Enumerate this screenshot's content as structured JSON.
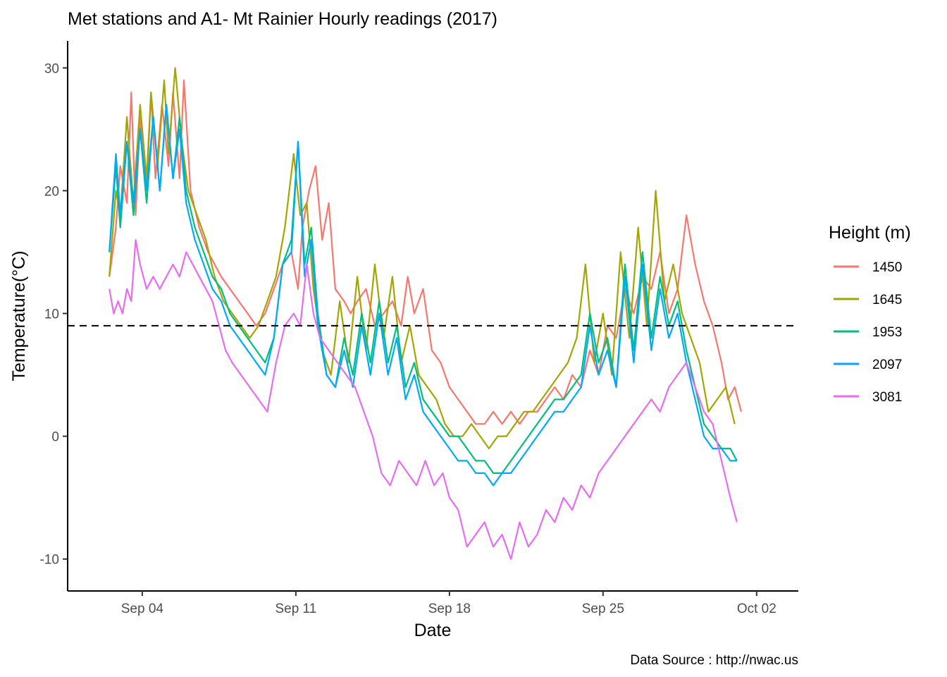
{
  "title": "Met stations and A1-  Mt Rainier Hourly readings (2017)",
  "caption": "Data Source : http://nwac.us",
  "legend": {
    "title": "Height (m)"
  },
  "chart_data": {
    "type": "line",
    "title": "Met stations and A1-  Mt Rainier Hourly readings (2017)",
    "xlabel": "Date",
    "ylabel": "Temperature(°C)",
    "x_ticks": [
      "Sep 04",
      "Sep 11",
      "Sep 18",
      "Sep 25",
      "Oct 02"
    ],
    "x_tick_days": [
      4,
      11,
      18,
      25,
      32
    ],
    "y_ticks": [
      -10,
      0,
      10,
      20,
      30
    ],
    "xlim": [
      0.6,
      33.9
    ],
    "ylim": [
      -12.6,
      32.2
    ],
    "reference_line": {
      "y": 9,
      "style": "dashed"
    },
    "x_units": "day of September 2017",
    "legend_position": "right",
    "grid": false,
    "series": [
      {
        "name": "1450",
        "color": "#F8766D",
        "x": [
          2.5,
          2.8,
          3.0,
          3.3,
          3.5,
          3.7,
          3.9,
          4.2,
          4.4,
          4.6,
          4.9,
          5.2,
          5.4,
          5.7,
          5.9,
          6.2,
          6.6,
          7.0,
          7.3,
          7.6,
          8.0,
          8.4,
          8.8,
          9.2,
          9.6,
          10.0,
          10.4,
          10.8,
          11.1,
          11.3,
          11.6,
          11.9,
          12.2,
          12.5,
          12.8,
          13.2,
          13.5,
          13.8,
          14.2,
          14.6,
          15.0,
          15.4,
          15.8,
          16.1,
          16.4,
          16.8,
          17.2,
          17.6,
          18.0,
          18.4,
          18.8,
          19.2,
          19.6,
          20.0,
          20.4,
          20.8,
          21.2,
          21.6,
          22.0,
          22.4,
          22.8,
          23.2,
          23.6,
          24.0,
          24.4,
          24.8,
          25.2,
          25.6,
          26.0,
          26.4,
          26.8,
          27.2,
          27.6,
          28.0,
          28.4,
          28.8,
          29.2,
          29.6,
          30.0,
          30.4,
          30.7,
          31.0,
          31.3
        ],
        "y": [
          13,
          17,
          22,
          19,
          28,
          18,
          26,
          20,
          28,
          21,
          27,
          22,
          28,
          21,
          29,
          20,
          17,
          15,
          14,
          13,
          12,
          11,
          10,
          9,
          10,
          12,
          14,
          15,
          12,
          17,
          20,
          22,
          16,
          19,
          12,
          11,
          10,
          11,
          12,
          9,
          10,
          11,
          9,
          13,
          10,
          12,
          7,
          6,
          4,
          3,
          2,
          1,
          1,
          2,
          1,
          2,
          1,
          2,
          2,
          3,
          4,
          3,
          5,
          4,
          7,
          5,
          9,
          8,
          12,
          10,
          13,
          12,
          15,
          10,
          12,
          18,
          14,
          11,
          9,
          6,
          3,
          4,
          2
        ]
      },
      {
        "name": "1645",
        "color": "#A3A500",
        "x": [
          2.5,
          2.8,
          3.0,
          3.3,
          3.6,
          3.9,
          4.2,
          4.4,
          4.7,
          5.0,
          5.2,
          5.5,
          5.8,
          6.1,
          6.5,
          6.9,
          7.3,
          7.7,
          8.1,
          8.5,
          8.9,
          9.3,
          9.7,
          10.1,
          10.5,
          10.9,
          11.2,
          11.5,
          11.8,
          12.2,
          12.6,
          13.0,
          13.4,
          13.8,
          14.2,
          14.6,
          15.0,
          15.4,
          15.8,
          16.2,
          16.6,
          17.0,
          17.4,
          17.8,
          18.2,
          18.6,
          19.0,
          19.4,
          19.8,
          20.2,
          20.6,
          21.0,
          21.4,
          21.8,
          22.2,
          22.6,
          23.0,
          23.4,
          23.8,
          24.2,
          24.6,
          25.0,
          25.4,
          25.8,
          26.2,
          26.6,
          27.0,
          27.4,
          27.8,
          28.2,
          28.6,
          29.0,
          29.4,
          29.8,
          30.2,
          30.6,
          31.0
        ],
        "y": [
          13,
          20,
          18,
          26,
          19,
          27,
          21,
          28,
          22,
          29,
          23,
          30,
          24,
          20,
          18,
          16,
          13,
          11,
          10,
          9,
          8,
          9,
          11,
          13,
          17,
          23,
          18,
          19,
          12,
          7,
          5,
          11,
          6,
          13,
          7,
          14,
          8,
          13,
          6,
          9,
          5,
          4,
          3,
          1,
          0,
          0,
          1,
          0,
          -1,
          0,
          0,
          1,
          2,
          2,
          3,
          4,
          5,
          6,
          8,
          14,
          6,
          10,
          5,
          15,
          8,
          17,
          9,
          20,
          11,
          14,
          10,
          8,
          6,
          2,
          3,
          4,
          1
        ]
      },
      {
        "name": "1953",
        "color": "#00BF7D",
        "x": [
          2.5,
          2.8,
          3.0,
          3.3,
          3.6,
          3.9,
          4.2,
          4.5,
          4.8,
          5.1,
          5.4,
          5.7,
          6.0,
          6.4,
          6.8,
          7.2,
          7.6,
          8.0,
          8.4,
          8.8,
          9.2,
          9.6,
          10.0,
          10.4,
          10.8,
          11.1,
          11.4,
          11.7,
          12.0,
          12.4,
          12.8,
          13.2,
          13.6,
          14.0,
          14.4,
          14.8,
          15.2,
          15.6,
          16.0,
          16.4,
          16.8,
          17.2,
          17.6,
          18.0,
          18.4,
          18.8,
          19.2,
          19.6,
          20.0,
          20.4,
          20.8,
          21.2,
          21.6,
          22.0,
          22.4,
          22.8,
          23.2,
          23.6,
          24.0,
          24.4,
          24.8,
          25.2,
          25.6,
          26.0,
          26.4,
          26.8,
          27.2,
          27.6,
          28.0,
          28.4,
          28.8,
          29.2,
          29.6,
          30.0,
          30.4,
          30.8,
          31.1
        ],
        "y": [
          15,
          22,
          17,
          24,
          18,
          25,
          19,
          26,
          20,
          27,
          21,
          26,
          20,
          17,
          15,
          13,
          12,
          10,
          9,
          8,
          7,
          6,
          8,
          14,
          16,
          24,
          14,
          17,
          10,
          5,
          4,
          8,
          5,
          10,
          6,
          11,
          6,
          9,
          4,
          6,
          3,
          2,
          1,
          0,
          0,
          -1,
          -2,
          -2,
          -3,
          -3,
          -2,
          -1,
          0,
          1,
          2,
          3,
          3,
          4,
          5,
          10,
          6,
          8,
          4,
          14,
          7,
          15,
          8,
          13,
          9,
          11,
          7,
          4,
          1,
          0,
          -1,
          -1,
          -2
        ]
      },
      {
        "name": "2097",
        "color": "#00A9FF",
        "x": [
          2.5,
          2.8,
          3.0,
          3.3,
          3.6,
          3.9,
          4.2,
          4.5,
          4.8,
          5.1,
          5.4,
          5.7,
          6.0,
          6.4,
          6.8,
          7.2,
          7.6,
          8.0,
          8.4,
          8.8,
          9.2,
          9.6,
          10.0,
          10.4,
          10.8,
          11.1,
          11.4,
          11.7,
          12.0,
          12.4,
          12.8,
          13.2,
          13.6,
          14.0,
          14.4,
          14.8,
          15.2,
          15.6,
          16.0,
          16.4,
          16.8,
          17.2,
          17.6,
          18.0,
          18.4,
          18.8,
          19.2,
          19.6,
          20.0,
          20.4,
          20.8,
          21.2,
          21.6,
          22.0,
          22.4,
          22.8,
          23.2,
          23.6,
          24.0,
          24.4,
          24.8,
          25.2,
          25.6,
          26.0,
          26.4,
          26.8,
          27.2,
          27.6,
          28.0,
          28.4,
          28.8,
          29.2,
          29.6,
          30.0,
          30.4,
          30.8,
          31.1
        ],
        "y": [
          15,
          23,
          18,
          24,
          19,
          25,
          20,
          26,
          20,
          27,
          21,
          25,
          19,
          16,
          14,
          12,
          11,
          9,
          8,
          7,
          6,
          5,
          8,
          14,
          15,
          24,
          13,
          16,
          9,
          5,
          4,
          7,
          4,
          9,
          5,
          10,
          5,
          8,
          3,
          5,
          2,
          1,
          0,
          -1,
          -2,
          -2,
          -3,
          -3,
          -4,
          -3,
          -3,
          -2,
          -1,
          0,
          1,
          2,
          2,
          3,
          4,
          9,
          5,
          7,
          4,
          13,
          6,
          14,
          7,
          12,
          8,
          10,
          6,
          3,
          0,
          -1,
          -1,
          -2,
          -2
        ]
      },
      {
        "name": "3081",
        "color": "#E76BF3",
        "x": [
          2.5,
          2.7,
          2.9,
          3.1,
          3.3,
          3.5,
          3.7,
          3.9,
          4.2,
          4.5,
          4.8,
          5.1,
          5.4,
          5.7,
          6.0,
          6.3,
          6.6,
          6.9,
          7.2,
          7.5,
          7.8,
          8.1,
          8.5,
          8.9,
          9.3,
          9.7,
          10.1,
          10.5,
          10.9,
          11.2,
          11.5,
          11.8,
          12.1,
          12.5,
          12.9,
          13.3,
          13.7,
          14.1,
          14.5,
          14.9,
          15.3,
          15.7,
          16.1,
          16.5,
          16.9,
          17.3,
          17.7,
          18.0,
          18.4,
          18.8,
          19.2,
          19.6,
          20.0,
          20.4,
          20.8,
          21.2,
          21.6,
          22.0,
          22.4,
          22.8,
          23.2,
          23.6,
          24.0,
          24.4,
          24.8,
          25.2,
          25.6,
          26.0,
          26.4,
          26.8,
          27.2,
          27.6,
          28.0,
          28.4,
          28.8,
          29.2,
          29.6,
          30.0,
          30.4,
          30.8,
          31.1
        ],
        "y": [
          12,
          10,
          11,
          10,
          12,
          11,
          16,
          14,
          12,
          13,
          12,
          13,
          14,
          13,
          15,
          14,
          13,
          12,
          11,
          9,
          7,
          6,
          5,
          4,
          3,
          2,
          6,
          9,
          10,
          9,
          14,
          10,
          8,
          7,
          6,
          5,
          4,
          2,
          0,
          -3,
          -4,
          -2,
          -3,
          -4,
          -2,
          -4,
          -3,
          -5,
          -6,
          -9,
          -8,
          -7,
          -9,
          -8,
          -10,
          -7,
          -9,
          -8,
          -6,
          -7,
          -5,
          -6,
          -4,
          -5,
          -3,
          -2,
          -1,
          0,
          1,
          2,
          3,
          2,
          4,
          5,
          6,
          4,
          2,
          1,
          -2,
          -5,
          -7
        ]
      }
    ]
  }
}
